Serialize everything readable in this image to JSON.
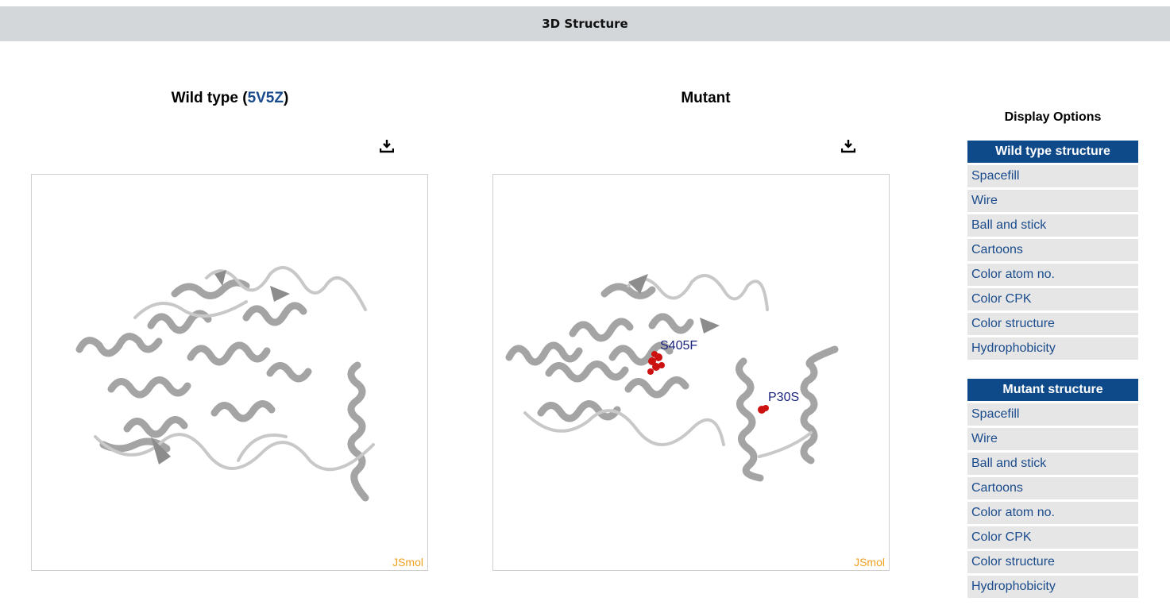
{
  "header": {
    "title": "3D Structure"
  },
  "wild_panel": {
    "title_prefix": "Wild type (",
    "pdb_id": "5V5Z",
    "title_suffix": ")",
    "watermark": "JSmol"
  },
  "mutant_panel": {
    "title": "Mutant",
    "watermark": "JSmol",
    "mutations": [
      "S405F",
      "P30S"
    ]
  },
  "display_options": {
    "title": "Display Options",
    "wild_group": {
      "heading": "Wild type structure",
      "items": [
        "Spacefill",
        "Wire",
        "Ball and stick",
        "Cartoons",
        "Color atom no.",
        "Color CPK",
        "Color structure",
        "Hydrophobicity"
      ]
    },
    "mutant_group": {
      "heading": "Mutant structure",
      "items": [
        "Spacefill",
        "Wire",
        "Ball and stick",
        "Cartoons",
        "Color atom no.",
        "Color CPK",
        "Color structure",
        "Hydrophobicity"
      ]
    }
  },
  "colors": {
    "accent": "#0e4a8a",
    "link": "#1a4b8c",
    "mutation": "#cc1111",
    "watermark": "#f0a01e",
    "ribbon": "#a9a9a9"
  }
}
